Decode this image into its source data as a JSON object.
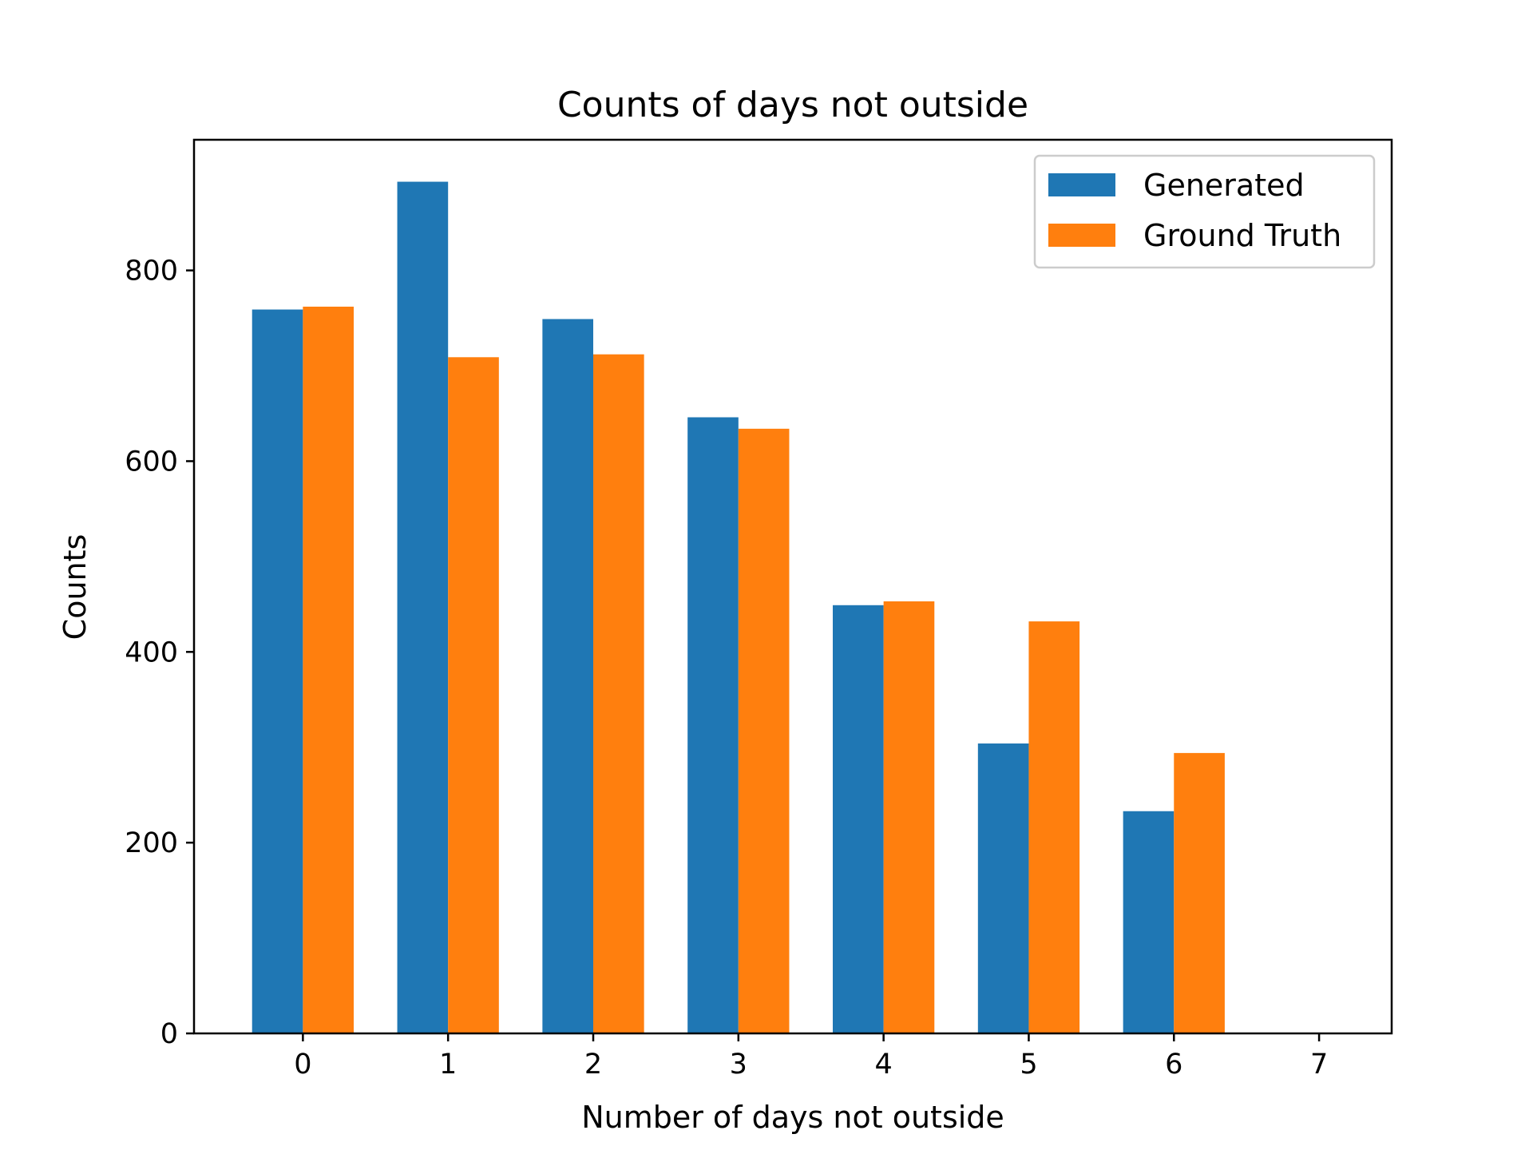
{
  "chart_data": {
    "type": "bar",
    "title": "Counts of days not outside",
    "xlabel": "Number of days not outside",
    "ylabel": "Counts",
    "categories": [
      "0",
      "1",
      "2",
      "3",
      "4",
      "5",
      "6",
      "7"
    ],
    "series": [
      {
        "name": "Generated",
        "color": "#1f77b4",
        "values": [
          759,
          893,
          749,
          646,
          449,
          304,
          233,
          0
        ]
      },
      {
        "name": "Ground Truth",
        "color": "#ff7f0e",
        "values": [
          762,
          709,
          712,
          634,
          453,
          432,
          294,
          0
        ]
      }
    ],
    "ylim": [
      0,
      937
    ],
    "yticks": [
      0,
      200,
      400,
      600,
      800
    ],
    "grid": false,
    "legend_position": "top-right"
  }
}
